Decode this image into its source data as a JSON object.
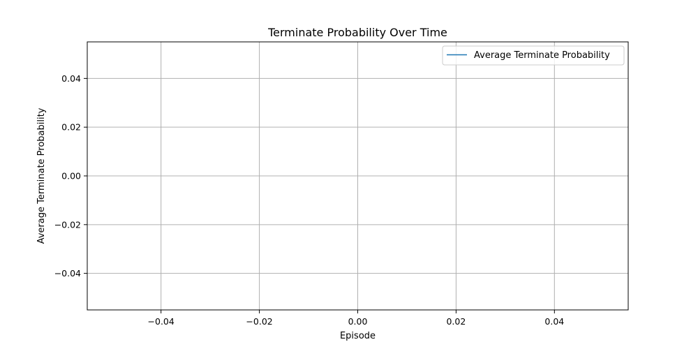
{
  "chart_data": {
    "type": "line",
    "title": "Terminate Probability Over Time",
    "xlabel": "Episode",
    "ylabel": "Average Terminate Probability",
    "xlim": [
      -0.055,
      0.055
    ],
    "ylim": [
      -0.055,
      0.055
    ],
    "xticks": [
      -0.04,
      -0.02,
      0.0,
      0.02,
      0.04
    ],
    "yticks": [
      -0.04,
      -0.02,
      0.0,
      0.02,
      0.04
    ],
    "xtick_labels": [
      "−0.04",
      "−0.02",
      "0.00",
      "0.02",
      "0.04"
    ],
    "ytick_labels": [
      "−0.04",
      "−0.02",
      "0.00",
      "0.02",
      "0.04"
    ],
    "grid": true,
    "legend_position": "top-right",
    "series": [
      {
        "name": "Average Terminate Probability",
        "color": "#1f77b4",
        "x": [],
        "y": []
      }
    ]
  }
}
